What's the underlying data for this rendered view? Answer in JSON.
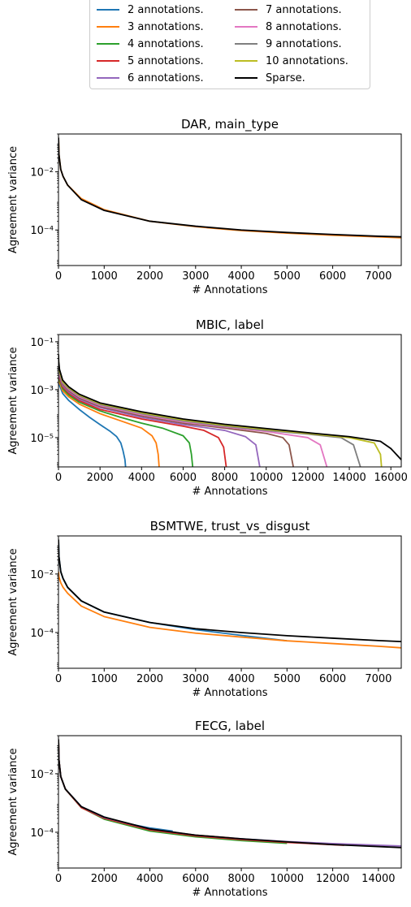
{
  "legend": {
    "placement": "top-center",
    "items": [
      {
        "label": "2 annotations.",
        "color": "#1f77b4"
      },
      {
        "label": "3 annotations.",
        "color": "#ff7f0e"
      },
      {
        "label": "4 annotations.",
        "color": "#2ca02c"
      },
      {
        "label": "5 annotations.",
        "color": "#d62728"
      },
      {
        "label": "6 annotations.",
        "color": "#9467bd"
      },
      {
        "label": "7 annotations.",
        "color": "#8c564b"
      },
      {
        "label": "8 annotations.",
        "color": "#e377c2"
      },
      {
        "label": "9 annotations.",
        "color": "#7f7f7f"
      },
      {
        "label": "10 annotations.",
        "color": "#bcbd22"
      },
      {
        "label": "Sparse.",
        "color": "#000000"
      }
    ]
  },
  "chart_data": [
    {
      "type": "line",
      "title": "DAR, main_type",
      "xlabel": "# Annotations",
      "ylabel": "Agreement variance",
      "yscale": "log",
      "xlim": [
        0,
        7500
      ],
      "ylim": [
        6e-06,
        0.2
      ],
      "xticks": [
        0,
        1000,
        2000,
        3000,
        4000,
        5000,
        6000,
        7000
      ],
      "yticks": [
        {
          "value": 0.01,
          "label": "10⁻²"
        },
        {
          "value": 0.0001,
          "label": "10⁻⁴"
        }
      ],
      "series": [
        {
          "name": "3 annotations.",
          "color": "#ff7f0e",
          "x": [
            1,
            10,
            50,
            100,
            200,
            500,
            1000,
            2000,
            3000,
            4000,
            5000,
            6000,
            7000,
            7500
          ],
          "y": [
            0.15,
            0.04,
            0.012,
            0.007,
            0.0035,
            0.0012,
            0.0005,
            0.0002,
            0.00013,
            9.5e-05,
            7.8e-05,
            6.6e-05,
            5.8e-05,
            5.4e-05
          ]
        },
        {
          "name": "Sparse.",
          "color": "#000000",
          "x": [
            1,
            10,
            50,
            100,
            200,
            500,
            1000,
            2000,
            3000,
            4000,
            5000,
            6000,
            7000,
            7500
          ],
          "y": [
            0.15,
            0.04,
            0.012,
            0.007,
            0.0035,
            0.0011,
            0.00047,
            0.0002,
            0.000135,
            0.0001,
            8.2e-05,
            7e-05,
            6.1e-05,
            5.8e-05
          ]
        }
      ]
    },
    {
      "type": "line",
      "title": "MBIC, label",
      "xlabel": "# Annotations",
      "ylabel": "Agreement variance",
      "yscale": "log",
      "xlim": [
        0,
        16500
      ],
      "ylim": [
        6e-07,
        0.2
      ],
      "xticks": [
        0,
        2000,
        4000,
        6000,
        8000,
        10000,
        12000,
        14000,
        16000
      ],
      "yticks": [
        {
          "value": 0.1,
          "label": "10⁻¹"
        },
        {
          "value": 0.001,
          "label": "10⁻³"
        },
        {
          "value": 1e-05,
          "label": "10⁻⁵"
        }
      ],
      "series": [
        {
          "name": "2 annotations.",
          "color": "#1f77b4",
          "x": [
            1,
            10,
            50,
            200,
            500,
            1000,
            1500,
            2000,
            2500,
            2800,
            3000,
            3100,
            3200,
            3230
          ],
          "y": [
            0.005,
            0.003,
            0.0015,
            0.0007,
            0.00035,
            0.00015,
            7e-05,
            3.5e-05,
            1.8e-05,
            1.1e-05,
            6e-06,
            3e-06,
            1.2e-06,
            6e-07
          ]
        },
        {
          "name": "3 annotations.",
          "color": "#ff7f0e",
          "x": [
            1,
            10,
            50,
            200,
            500,
            1000,
            2000,
            3000,
            4000,
            4500,
            4700,
            4800,
            4845
          ],
          "y": [
            0.007,
            0.004,
            0.002,
            0.0009,
            0.0005,
            0.00025,
            0.0001,
            5e-05,
            2.5e-05,
            1.2e-05,
            6e-06,
            2e-06,
            6e-07
          ]
        },
        {
          "name": "4 annotations.",
          "color": "#2ca02c",
          "x": [
            1,
            10,
            50,
            200,
            500,
            1000,
            2000,
            3000,
            4000,
            5000,
            6000,
            6300,
            6400,
            6460
          ],
          "y": [
            0.01,
            0.005,
            0.0025,
            0.0011,
            0.0006,
            0.0003,
            0.00013,
            7e-05,
            4e-05,
            2.5e-05,
            1.2e-05,
            6e-06,
            2e-06,
            6e-07
          ]
        },
        {
          "name": "5 annotations.",
          "color": "#d62728",
          "x": [
            1,
            10,
            50,
            200,
            500,
            1000,
            2000,
            4000,
            6000,
            7000,
            7700,
            7950,
            8075
          ],
          "y": [
            0.012,
            0.006,
            0.003,
            0.0013,
            0.0007,
            0.00035,
            0.00015,
            6e-05,
            3e-05,
            2e-05,
            1e-05,
            4e-06,
            6e-07
          ]
        },
        {
          "name": "6 annotations.",
          "color": "#9467bd",
          "x": [
            1,
            10,
            50,
            200,
            500,
            1000,
            2000,
            4000,
            6000,
            8000,
            9000,
            9500,
            9690
          ],
          "y": [
            0.014,
            0.007,
            0.0035,
            0.0015,
            0.0008,
            0.0004,
            0.00018,
            7e-05,
            3.5e-05,
            2e-05,
            1.1e-05,
            5e-06,
            6e-07
          ]
        },
        {
          "name": "7 annotations.",
          "color": "#8c564b",
          "x": [
            1,
            10,
            50,
            200,
            500,
            1000,
            2000,
            4000,
            6000,
            8000,
            10000,
            10800,
            11100,
            11305
          ],
          "y": [
            0.016,
            0.008,
            0.004,
            0.0017,
            0.0009,
            0.00045,
            0.0002,
            8e-05,
            4e-05,
            2.5e-05,
            1.5e-05,
            1e-05,
            5e-06,
            6e-07
          ]
        },
        {
          "name": "8 annotations.",
          "color": "#e377c2",
          "x": [
            1,
            10,
            50,
            200,
            500,
            1000,
            2000,
            4000,
            6000,
            8000,
            10000,
            12000,
            12600,
            12920
          ],
          "y": [
            0.018,
            0.009,
            0.0045,
            0.0019,
            0.001,
            0.0005,
            0.00022,
            9e-05,
            4.5e-05,
            2.8e-05,
            1.8e-05,
            1e-05,
            5e-06,
            6e-07
          ]
        },
        {
          "name": "9 annotations.",
          "color": "#7f7f7f",
          "x": [
            1,
            10,
            50,
            200,
            500,
            1000,
            2000,
            4000,
            6000,
            8000,
            10000,
            12000,
            13600,
            14200,
            14535
          ],
          "y": [
            0.02,
            0.01,
            0.005,
            0.002,
            0.0011,
            0.00055,
            0.00024,
            0.0001,
            5e-05,
            3e-05,
            2e-05,
            1.4e-05,
            1e-05,
            5e-06,
            6e-07
          ]
        },
        {
          "name": "10 annotations.",
          "color": "#bcbd22",
          "x": [
            1,
            10,
            50,
            200,
            500,
            1000,
            2000,
            4000,
            6000,
            8000,
            10000,
            12000,
            14000,
            15200,
            15500,
            15550
          ],
          "y": [
            0.025,
            0.012,
            0.006,
            0.0022,
            0.0012,
            0.0006,
            0.00026,
            0.00011,
            5.5e-05,
            3.3e-05,
            2.2e-05,
            1.5e-05,
            1e-05,
            6e-06,
            2e-06,
            6e-07
          ]
        },
        {
          "name": "Sparse.",
          "color": "#000000",
          "x": [
            1,
            10,
            50,
            200,
            500,
            1000,
            2000,
            4000,
            6000,
            8000,
            10000,
            12000,
            14000,
            15500,
            16000,
            16500
          ],
          "y": [
            0.03,
            0.015,
            0.007,
            0.0025,
            0.0013,
            0.00065,
            0.00028,
            0.00012,
            6e-05,
            3.6e-05,
            2.4e-05,
            1.6e-05,
            1.1e-05,
            7e-06,
            3.5e-06,
            1.2e-06
          ]
        }
      ]
    },
    {
      "type": "line",
      "title": "BSMTWE, trust_vs_disgust",
      "xlabel": "# Annotations",
      "ylabel": "Agreement variance",
      "yscale": "log",
      "xlim": [
        0,
        7500
      ],
      "ylim": [
        6e-06,
        0.2
      ],
      "xticks": [
        0,
        1000,
        2000,
        3000,
        4000,
        5000,
        6000,
        7000
      ],
      "yticks": [
        {
          "value": 0.01,
          "label": "10⁻²"
        },
        {
          "value": 0.0001,
          "label": "10⁻⁴"
        }
      ],
      "series": [
        {
          "name": "2 annotations.",
          "color": "#1f77b4",
          "x": [
            1,
            10,
            50,
            100,
            200,
            500,
            1000,
            2000,
            3000,
            4000,
            5000
          ],
          "y": [
            0.15,
            0.04,
            0.012,
            0.007,
            0.0035,
            0.0012,
            0.0005,
            0.00022,
            0.000125,
            8e-05,
            5.2e-05
          ]
        },
        {
          "name": "3 annotations.",
          "color": "#ff7f0e",
          "x": [
            1,
            10,
            50,
            100,
            200,
            500,
            1000,
            2000,
            3000,
            4000,
            5000,
            6000,
            7000,
            7500
          ],
          "y": [
            0.012,
            0.008,
            0.005,
            0.0035,
            0.0022,
            0.0008,
            0.00035,
            0.00015,
            9.5e-05,
            7e-05,
            5.2e-05,
            4.2e-05,
            3.4e-05,
            3e-05
          ]
        },
        {
          "name": "Sparse.",
          "color": "#000000",
          "x": [
            1,
            10,
            50,
            100,
            200,
            500,
            1000,
            2000,
            3000,
            4000,
            5000,
            6000,
            7000,
            7500
          ],
          "y": [
            0.15,
            0.04,
            0.012,
            0.007,
            0.0035,
            0.0012,
            0.0005,
            0.00022,
            0.000135,
            0.0001,
            7.8e-05,
            6.4e-05,
            5.3e-05,
            4.9e-05
          ]
        }
      ]
    },
    {
      "type": "line",
      "title": "FECG, label",
      "xlabel": "# Annotations",
      "ylabel": "Agreement variance",
      "yscale": "log",
      "xlim": [
        0,
        15000
      ],
      "ylim": [
        6e-06,
        0.2
      ],
      "xticks": [
        0,
        2000,
        4000,
        6000,
        8000,
        10000,
        12000,
        14000
      ],
      "yticks": [
        {
          "value": 0.01,
          "label": "10⁻²"
        },
        {
          "value": 0.0001,
          "label": "10⁻⁴"
        }
      ],
      "series": [
        {
          "name": "2 annotations.",
          "color": "#1f77b4",
          "x": [
            1,
            20,
            100,
            300,
            1000,
            2000,
            3000,
            4000,
            5000
          ],
          "y": [
            0.15,
            0.03,
            0.008,
            0.003,
            0.00075,
            0.00033,
            0.0002,
            0.00014,
            0.00011
          ]
        },
        {
          "name": "3 annotations.",
          "color": "#ff7f0e",
          "x": [
            1,
            20,
            100,
            300,
            1000,
            2000,
            4000,
            6000,
            7500
          ],
          "y": [
            0.15,
            0.03,
            0.008,
            0.003,
            0.0007,
            0.0003,
            0.00012,
            8e-05,
            6.5e-05
          ]
        },
        {
          "name": "4 annotations.",
          "color": "#2ca02c",
          "x": [
            1,
            20,
            100,
            300,
            1000,
            2000,
            4000,
            6000,
            8000,
            10000
          ],
          "y": [
            0.15,
            0.03,
            0.008,
            0.003,
            0.0007,
            0.00028,
            0.00011,
            7e-05,
            5.2e-05,
            4.2e-05
          ]
        },
        {
          "name": "5 annotations.",
          "color": "#d62728",
          "x": [
            1,
            20,
            100,
            300,
            1000,
            2000,
            4000,
            6000,
            8000,
            10000,
            12500
          ],
          "y": [
            0.15,
            0.03,
            0.008,
            0.003,
            0.0007,
            0.0003,
            0.00012,
            7.5e-05,
            5.6e-05,
            4.5e-05,
            3.6e-05
          ]
        },
        {
          "name": "6 annotations.",
          "color": "#9467bd",
          "x": [
            1,
            20,
            100,
            300,
            1000,
            2000,
            4000,
            6000,
            8000,
            10000,
            12000,
            15000
          ],
          "y": [
            0.15,
            0.03,
            0.008,
            0.003,
            0.00075,
            0.00032,
            0.00013,
            8e-05,
            6e-05,
            4.8e-05,
            4.1e-05,
            3.4e-05
          ]
        },
        {
          "name": "Sparse.",
          "color": "#000000",
          "x": [
            1,
            20,
            100,
            300,
            1000,
            2000,
            4000,
            6000,
            8000,
            10000,
            12000,
            15000
          ],
          "y": [
            0.15,
            0.03,
            0.008,
            0.003,
            0.00075,
            0.00033,
            0.00013,
            8e-05,
            6e-05,
            4.7e-05,
            3.8e-05,
            3e-05
          ]
        }
      ]
    }
  ]
}
